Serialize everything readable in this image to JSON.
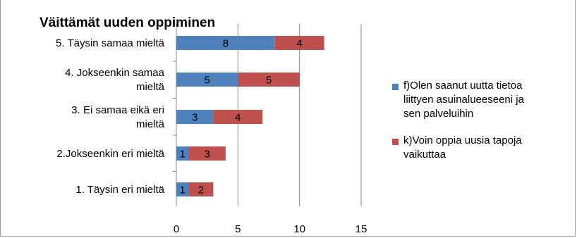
{
  "chart_data": {
    "type": "bar",
    "orientation": "horizontal",
    "stacked": true,
    "title": "Väittämät uuden oppiminen",
    "categories": [
      "5. Täysin samaa mieltä",
      "4. Jokseenkin samaa mieltä",
      "3. Ei samaa eikä eri mieltä",
      "2.Jokseenkin eri mieltä",
      "1. Täysin eri mieltä"
    ],
    "category_lines": [
      [
        "5. Täysin samaa mieltä"
      ],
      [
        "4. Jokseenkin samaa",
        "mieltä"
      ],
      [
        "3. Ei samaa eikä eri",
        "mieltä"
      ],
      [
        "2.Jokseenkin eri mieltä"
      ],
      [
        "1. Täysin eri mieltä"
      ]
    ],
    "series": [
      {
        "name": "f)Olen saanut uutta tietoa liittyen asuinalueeseeni ja sen palveluihin",
        "name_lines": [
          "f)Olen saanut uutta tietoa",
          "liittyen asuinalueeseeni ja",
          "sen palveluihin"
        ],
        "values": [
          8,
          5,
          3,
          1,
          1
        ],
        "color": "#4f81bd"
      },
      {
        "name": "k)Voin oppia uusia tapoja vaikuttaa",
        "name_lines": [
          "k)Voin oppia uusia tapoja",
          "vaikuttaa"
        ],
        "values": [
          4,
          5,
          4,
          3,
          2
        ],
        "color": "#c0504d"
      }
    ],
    "xlim": [
      0,
      15
    ],
    "xticks": [
      0,
      5,
      10,
      15
    ],
    "grid": true,
    "legend_position": "right"
  }
}
